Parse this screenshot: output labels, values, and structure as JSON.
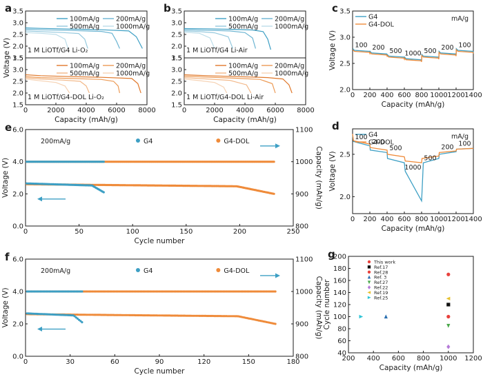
{
  "colors": {
    "g4": "#3d9fc4",
    "g4dol": "#ef8b3a",
    "dark": "#1a1a1a"
  },
  "chart_data": [
    {
      "panel": "a",
      "type": "line",
      "xlabel": "Capacity (mAh/g)",
      "ylabel": "Voltage (V)",
      "xlim": [
        0,
        8000
      ],
      "xticks": [
        "0",
        "2000",
        "4000",
        "6000",
        "8000"
      ],
      "subplots": [
        {
          "condition": "1 M LiOTf/G4 Li-O₂",
          "ylim": [
            1.5,
            3.5
          ],
          "yticks": [
            "1.5",
            "2.0",
            "2.5",
            "3.0",
            "3.5"
          ],
          "legend": [
            "100mA/g",
            "200mA/g",
            "500mA/g",
            "1000mA/g"
          ],
          "series": [
            {
              "name": "100mA/g",
              "x": [
                0,
                1000,
                3000,
                5000,
                6800,
                7300,
                7700
              ],
              "y": [
                2.78,
                2.76,
                2.73,
                2.7,
                2.65,
                2.4,
                1.9
              ]
            },
            {
              "name": "200mA/g",
              "x": [
                0,
                1000,
                3000,
                5000,
                5700,
                6000,
                6200
              ],
              "y": [
                2.72,
                2.7,
                2.67,
                2.63,
                2.55,
                2.2,
                1.9
              ]
            },
            {
              "name": "500mA/g",
              "x": [
                0,
                1000,
                2500,
                3500,
                3900,
                4100
              ],
              "y": [
                2.65,
                2.62,
                2.58,
                2.54,
                2.3,
                1.9
              ]
            },
            {
              "name": "1000mA/g",
              "x": [
                0,
                1000,
                2000,
                2600,
                2800
              ],
              "y": [
                2.58,
                2.55,
                2.5,
                2.3,
                1.9
              ]
            }
          ]
        },
        {
          "condition": "1 M LiOTf/G4-DOL Li-O₂",
          "ylim": [
            1.5,
            3.5
          ],
          "yticks": [
            "1.5",
            "2.0",
            "2.5",
            "3.0",
            "3.5"
          ],
          "legend": [
            "100mA/g",
            "200mA/g",
            "500mA/g",
            "1000mA/g"
          ],
          "series": [
            {
              "name": "100mA/g",
              "x": [
                0,
                1000,
                3000,
                5000,
                7000,
                7400,
                7600
              ],
              "y": [
                2.78,
                2.74,
                2.7,
                2.67,
                2.62,
                2.4,
                2.0
              ]
            },
            {
              "name": "200mA/g",
              "x": [
                0,
                1000,
                3000,
                5000,
                5800,
                6100,
                6200
              ],
              "y": [
                2.7,
                2.66,
                2.62,
                2.58,
                2.5,
                2.3,
                2.0
              ]
            },
            {
              "name": "500mA/g",
              "x": [
                0,
                1000,
                2500,
                3600,
                4000,
                4200
              ],
              "y": [
                2.65,
                2.6,
                2.55,
                2.5,
                2.3,
                2.0
              ]
            },
            {
              "name": "1000mA/g",
              "x": [
                0,
                1000,
                2000,
                2600,
                2900
              ],
              "y": [
                2.6,
                2.52,
                2.45,
                2.3,
                2.0
              ]
            }
          ]
        }
      ]
    },
    {
      "panel": "b",
      "type": "line",
      "xlabel": "Capacity (mAh/g)",
      "ylabel": "",
      "xlim": [
        0,
        8000
      ],
      "xticks": [
        "0",
        "2000",
        "4000",
        "6000",
        "8000"
      ],
      "subplots": [
        {
          "condition": "1 M LiOTf/G4 Li-Air",
          "ylim": [
            1.5,
            3.5
          ],
          "yticks": [
            "1.5",
            "2.0",
            "2.5",
            "3.0",
            "3.5"
          ],
          "legend": [
            "100mA/g",
            "200mA/g",
            "500mA/g",
            "1000mA/g"
          ],
          "series": [
            {
              "name": "100mA/g",
              "x": [
                0,
                1500,
                3000,
                4500,
                5200,
                5500,
                5700
              ],
              "y": [
                2.75,
                2.74,
                2.72,
                2.69,
                2.62,
                2.3,
                1.85
              ]
            },
            {
              "name": "200mA/g",
              "x": [
                0,
                1500,
                3000,
                4000,
                4500,
                4700
              ],
              "y": [
                2.7,
                2.68,
                2.65,
                2.58,
                2.35,
                1.9
              ]
            },
            {
              "name": "500mA/g",
              "x": [
                0,
                1000,
                2000,
                2900,
                3200
              ],
              "y": [
                2.65,
                2.62,
                2.57,
                2.4,
                1.9
              ]
            },
            {
              "name": "1000mA/g",
              "x": [
                0,
                1000,
                1700,
                2000
              ],
              "y": [
                2.6,
                2.55,
                2.35,
                1.9
              ]
            }
          ]
        },
        {
          "condition": "1 M LiOTf/G4-DOL Li-Air",
          "ylim": [
            1.5,
            3.5
          ],
          "yticks": [
            "1.5",
            "2.0",
            "2.5",
            "3.0",
            "3.5"
          ],
          "legend": [
            "100mA/g",
            "200mA/g",
            "500mA/g",
            "1000mA/g"
          ],
          "series": [
            {
              "name": "100mA/g",
              "x": [
                0,
                1500,
                3500,
                5500,
                6500,
                6900,
                7100
              ],
              "y": [
                2.78,
                2.74,
                2.7,
                2.66,
                2.6,
                2.35,
                2.0
              ]
            },
            {
              "name": "200mA/g",
              "x": [
                0,
                1500,
                3500,
                5000,
                5800,
                6000
              ],
              "y": [
                2.72,
                2.68,
                2.63,
                2.58,
                2.4,
                2.0
              ]
            },
            {
              "name": "500mA/g",
              "x": [
                0,
                1500,
                3000,
                4100,
                4400
              ],
              "y": [
                2.66,
                2.6,
                2.54,
                2.35,
                2.0
              ]
            },
            {
              "name": "1000mA/g",
              "x": [
                0,
                1000,
                2000,
                2600,
                2800
              ],
              "y": [
                2.6,
                2.53,
                2.45,
                2.25,
                2.0
              ]
            }
          ]
        }
      ]
    },
    {
      "panel": "c",
      "type": "line",
      "xlabel": "Capacity (mAh/g)",
      "ylabel": "Voltage (V)",
      "xlim": [
        0,
        1400
      ],
      "ylim": [
        2.0,
        3.5
      ],
      "unit": "mA/g",
      "xticks": [
        "0",
        "200",
        "400",
        "600",
        "800",
        "1000",
        "1200",
        "1400"
      ],
      "yticks": [
        "2.0",
        "2.5",
        "3.0",
        "3.5"
      ],
      "legend": [
        "G4",
        "G4-DOL"
      ],
      "rates": [
        {
          "x": 100,
          "label": "100"
        },
        {
          "x": 300,
          "label": "200"
        },
        {
          "x": 500,
          "label": "500"
        },
        {
          "x": 700,
          "label": "1000"
        },
        {
          "x": 900,
          "label": "500"
        },
        {
          "x": 1100,
          "label": "200"
        },
        {
          "x": 1300,
          "label": "100"
        }
      ],
      "series": [
        {
          "name": "G4",
          "plateaus": [
            2.75,
            2.7,
            2.64,
            2.59,
            2.64,
            2.7,
            2.75
          ]
        },
        {
          "name": "G4-DOL",
          "plateaus": [
            2.73,
            2.68,
            2.62,
            2.57,
            2.62,
            2.68,
            2.73
          ]
        }
      ]
    },
    {
      "panel": "d",
      "type": "line",
      "xlabel": "Capacity (mAh/g)",
      "ylabel": "Voltage (V)",
      "xlim": [
        0,
        1400
      ],
      "ylim": [
        1.8,
        2.8
      ],
      "unit": "mA/g",
      "xticks": [
        "0",
        "200",
        "400",
        "600",
        "800",
        "1000",
        "1200",
        "1400"
      ],
      "yticks": [
        "2.0",
        "2.5"
      ],
      "legend": [
        "G4",
        "G4-DOL"
      ],
      "rates": [
        {
          "x": 100,
          "label": "100"
        },
        {
          "x": 300,
          "label": "200"
        },
        {
          "x": 500,
          "label": "500"
        },
        {
          "x": 700,
          "label": "1000"
        },
        {
          "x": 900,
          "label": "500"
        },
        {
          "x": 1100,
          "label": "200"
        },
        {
          "x": 1300,
          "label": "100"
        }
      ],
      "series": [
        {
          "name": "G4",
          "x": [
            0,
            10,
            200,
            205,
            400,
            405,
            600,
            610,
            800,
            805,
            820,
            1000,
            1005,
            1200,
            1205,
            1400
          ],
          "y": [
            2.72,
            2.65,
            2.6,
            2.55,
            2.52,
            2.45,
            2.4,
            2.3,
            1.95,
            2.05,
            2.4,
            2.45,
            2.5,
            2.53,
            2.56,
            2.57
          ]
        },
        {
          "name": "G4-DOL",
          "x": [
            0,
            10,
            200,
            205,
            400,
            405,
            600,
            610,
            800,
            805,
            1000,
            1005,
            1200,
            1205,
            1400
          ],
          "y": [
            2.74,
            2.66,
            2.62,
            2.58,
            2.55,
            2.5,
            2.47,
            2.42,
            2.4,
            2.45,
            2.48,
            2.52,
            2.54,
            2.56,
            2.57
          ]
        }
      ]
    },
    {
      "panel": "e",
      "type": "scatter",
      "rate": "200mA/g",
      "xlabel": "Cycle number",
      "ylabel": "Voltage (V)",
      "y2label": "Capacity (mAh/g)",
      "xlim": [
        0,
        250
      ],
      "ylim": [
        0.0,
        6.0
      ],
      "y2lim": [
        800,
        1100
      ],
      "xticks": [
        "0",
        "50",
        "100",
        "150",
        "200",
        "250"
      ],
      "yticks": [
        "0.0",
        "2.0",
        "4.0",
        "6.0"
      ],
      "y2ticks": [
        "800",
        "900",
        "1000",
        "1100"
      ],
      "legend": [
        "G4",
        "G4-DOL"
      ],
      "series": [
        {
          "name": "G4",
          "capacity": 1000,
          "cycles": 73,
          "voltage_start": 2.65,
          "voltage_end": 2.1
        },
        {
          "name": "G4-DOL",
          "capacity": 1000,
          "cycles": 232,
          "voltage_start": 2.6,
          "voltage_end": 2.0
        }
      ]
    },
    {
      "panel": "f",
      "type": "scatter",
      "rate": "200mA/g",
      "xlabel": "Cycle number",
      "ylabel": "Voltage (V)",
      "y2label": "Capacity (mAh/g)",
      "xlim": [
        0,
        180
      ],
      "ylim": [
        0.0,
        6.0
      ],
      "y2lim": [
        800,
        1100
      ],
      "xticks": [
        "0",
        "30",
        "60",
        "90",
        "120",
        "150",
        "180"
      ],
      "yticks": [
        "0.0",
        "2.0",
        "4.0",
        "6.0"
      ],
      "y2ticks": [
        "800",
        "900",
        "1000",
        "1100"
      ],
      "legend": [
        "G4",
        "G4-DOL"
      ],
      "series": [
        {
          "name": "G4",
          "capacity": 1000,
          "cycles": 38,
          "voltage_start": 2.65,
          "voltage_end": 2.1
        },
        {
          "name": "G4-DOL",
          "capacity": 1000,
          "cycles": 168,
          "voltage_start": 2.6,
          "voltage_end": 2.0
        }
      ]
    },
    {
      "panel": "g",
      "type": "scatter",
      "xlabel": "Capacity (mAh/g)",
      "ylabel": "Cycle number",
      "xlim": [
        200,
        1200
      ],
      "ylim": [
        40,
        200
      ],
      "xticks": [
        "200",
        "400",
        "600",
        "800",
        "1000",
        "1200"
      ],
      "yticks": [
        "40",
        "60",
        "80",
        "100",
        "120",
        "140",
        "160",
        "180",
        "200"
      ],
      "points": [
        {
          "name": "This work",
          "x": 1000,
          "y": 170,
          "color": "#e8413c",
          "shape": "circle"
        },
        {
          "name": "Ref.17",
          "x": 1000,
          "y": 120,
          "color": "#111111",
          "shape": "square"
        },
        {
          "name": "Ref.28",
          "x": 1000,
          "y": 100,
          "color": "#e8413c",
          "shape": "circle"
        },
        {
          "name": "Ref. 3",
          "x": 500,
          "y": 100,
          "color": "#2a6fb0",
          "shape": "triangle-up"
        },
        {
          "name": "Ref.27",
          "x": 1000,
          "y": 85,
          "color": "#4aa84a",
          "shape": "triangle-down"
        },
        {
          "name": "Ref.22",
          "x": 1000,
          "y": 50,
          "color": "#b57ad8",
          "shape": "diamond"
        },
        {
          "name": "Ref.19",
          "x": 1000,
          "y": 130,
          "color": "#e6c12e",
          "shape": "triangle-left"
        },
        {
          "name": "Ref.25",
          "x": 300,
          "y": 100,
          "color": "#2ec4d6",
          "shape": "triangle-right"
        }
      ]
    }
  ]
}
